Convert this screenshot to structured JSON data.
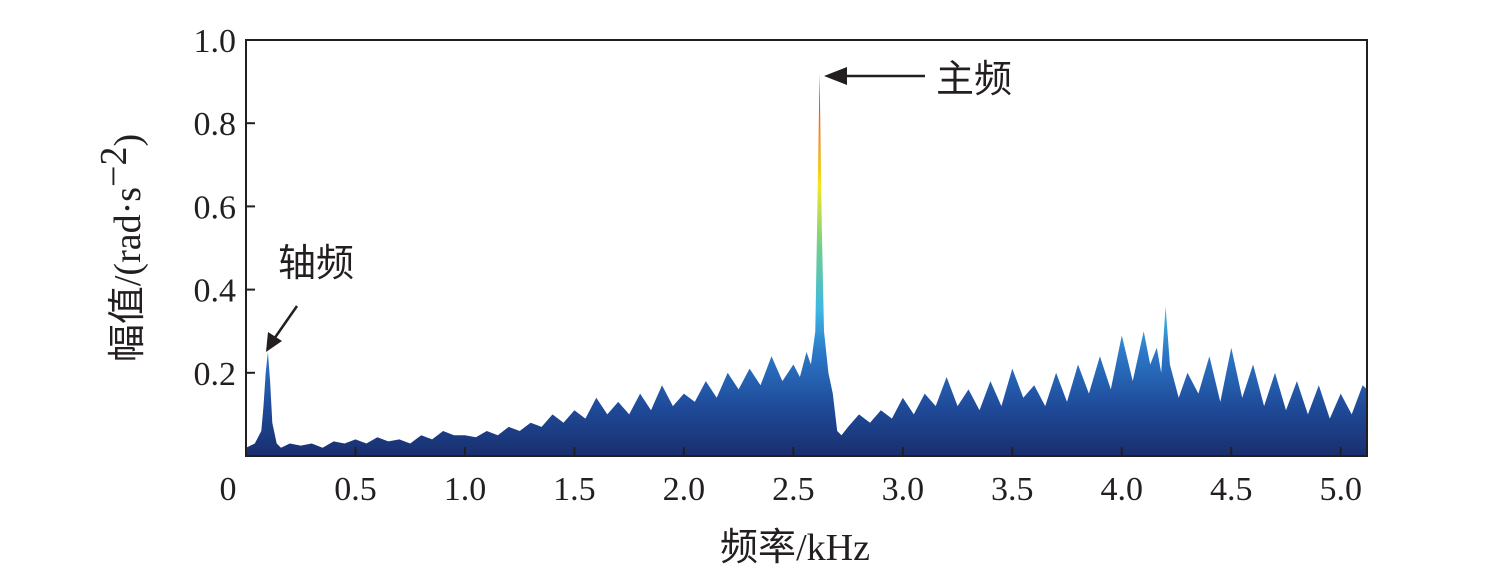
{
  "chart_data": {
    "type": "area",
    "xlabel_cn": "频率",
    "xlabel_unit": "/kHz",
    "ylabel_cn": "幅值",
    "ylabel_unit_open": "/(rad",
    "ylabel_unit_dot": "·",
    "ylabel_unit_s": "s",
    "ylabel_unit_exp": "−2",
    "ylabel_unit_close": ")",
    "xlim": [
      0,
      5.12
    ],
    "ylim": [
      0,
      1.0
    ],
    "x_ticks": [
      {
        "value": 0,
        "label": "0"
      },
      {
        "value": 0.5,
        "label": "0.5"
      },
      {
        "value": 1.0,
        "label": "1.0"
      },
      {
        "value": 1.5,
        "label": "1.5"
      },
      {
        "value": 2.0,
        "label": "2.0"
      },
      {
        "value": 2.5,
        "label": "2.5"
      },
      {
        "value": 3.0,
        "label": "3.0"
      },
      {
        "value": 3.5,
        "label": "3.5"
      },
      {
        "value": 4.0,
        "label": "4.0"
      },
      {
        "value": 4.5,
        "label": "4.5"
      },
      {
        "value": 5.0,
        "label": "5.0"
      }
    ],
    "y_ticks": [
      {
        "value": 0.2,
        "label": "0.2"
      },
      {
        "value": 0.4,
        "label": "0.4"
      },
      {
        "value": 0.6,
        "label": "0.6"
      },
      {
        "value": 0.8,
        "label": "0.8"
      },
      {
        "value": 1.0,
        "label": "1.0"
      }
    ],
    "grid": false,
    "annotations": [
      {
        "label": "轴频",
        "x": 0.09,
        "y": 0.25
      },
      {
        "label": "主频",
        "x": 2.62,
        "y": 0.92
      }
    ],
    "x": [
      0.0,
      0.04,
      0.07,
      0.08,
      0.09,
      0.1,
      0.11,
      0.12,
      0.14,
      0.16,
      0.2,
      0.25,
      0.3,
      0.35,
      0.4,
      0.45,
      0.5,
      0.55,
      0.6,
      0.65,
      0.7,
      0.75,
      0.8,
      0.85,
      0.9,
      0.95,
      1.0,
      1.05,
      1.1,
      1.15,
      1.2,
      1.25,
      1.3,
      1.35,
      1.4,
      1.45,
      1.5,
      1.55,
      1.6,
      1.65,
      1.7,
      1.75,
      1.8,
      1.85,
      1.9,
      1.95,
      2.0,
      2.05,
      2.1,
      2.15,
      2.2,
      2.25,
      2.3,
      2.35,
      2.4,
      2.45,
      2.5,
      2.53,
      2.56,
      2.58,
      2.6,
      2.61,
      2.62,
      2.63,
      2.64,
      2.66,
      2.68,
      2.7,
      2.72,
      2.75,
      2.8,
      2.85,
      2.9,
      2.95,
      3.0,
      3.05,
      3.1,
      3.15,
      3.2,
      3.25,
      3.3,
      3.35,
      3.4,
      3.45,
      3.5,
      3.55,
      3.6,
      3.65,
      3.7,
      3.75,
      3.8,
      3.85,
      3.9,
      3.95,
      4.0,
      4.05,
      4.1,
      4.13,
      4.16,
      4.18,
      4.2,
      4.22,
      4.24,
      4.26,
      4.3,
      4.35,
      4.4,
      4.45,
      4.5,
      4.55,
      4.6,
      4.65,
      4.7,
      4.75,
      4.8,
      4.85,
      4.9,
      4.95,
      5.0,
      5.05,
      5.1,
      5.12
    ],
    "values": [
      0.02,
      0.03,
      0.06,
      0.12,
      0.2,
      0.25,
      0.18,
      0.08,
      0.03,
      0.02,
      0.03,
      0.025,
      0.03,
      0.02,
      0.035,
      0.03,
      0.04,
      0.03,
      0.045,
      0.035,
      0.04,
      0.03,
      0.05,
      0.04,
      0.06,
      0.05,
      0.05,
      0.045,
      0.06,
      0.05,
      0.07,
      0.06,
      0.08,
      0.07,
      0.1,
      0.08,
      0.11,
      0.09,
      0.14,
      0.1,
      0.13,
      0.1,
      0.15,
      0.11,
      0.17,
      0.12,
      0.15,
      0.13,
      0.18,
      0.14,
      0.2,
      0.16,
      0.21,
      0.17,
      0.24,
      0.18,
      0.22,
      0.19,
      0.25,
      0.22,
      0.3,
      0.6,
      0.92,
      0.55,
      0.3,
      0.2,
      0.15,
      0.06,
      0.05,
      0.07,
      0.1,
      0.08,
      0.11,
      0.09,
      0.14,
      0.1,
      0.15,
      0.12,
      0.19,
      0.12,
      0.16,
      0.11,
      0.18,
      0.12,
      0.21,
      0.14,
      0.17,
      0.12,
      0.2,
      0.13,
      0.22,
      0.15,
      0.24,
      0.16,
      0.29,
      0.18,
      0.3,
      0.22,
      0.26,
      0.2,
      0.36,
      0.22,
      0.18,
      0.14,
      0.2,
      0.15,
      0.24,
      0.13,
      0.26,
      0.14,
      0.22,
      0.12,
      0.2,
      0.11,
      0.18,
      0.1,
      0.17,
      0.09,
      0.15,
      0.1,
      0.17,
      0.16
    ],
    "gradient": [
      {
        "value": 0.0,
        "color": "#192f6e"
      },
      {
        "value": 0.12,
        "color": "#1f4b9a"
      },
      {
        "value": 0.25,
        "color": "#2c78c8"
      },
      {
        "value": 0.35,
        "color": "#3fb7e3"
      },
      {
        "value": 0.5,
        "color": "#6fcf8f"
      },
      {
        "value": 0.65,
        "color": "#f1e81d"
      },
      {
        "value": 0.78,
        "color": "#f0861f"
      },
      {
        "value": 0.9,
        "color": "#d6211c"
      }
    ]
  }
}
